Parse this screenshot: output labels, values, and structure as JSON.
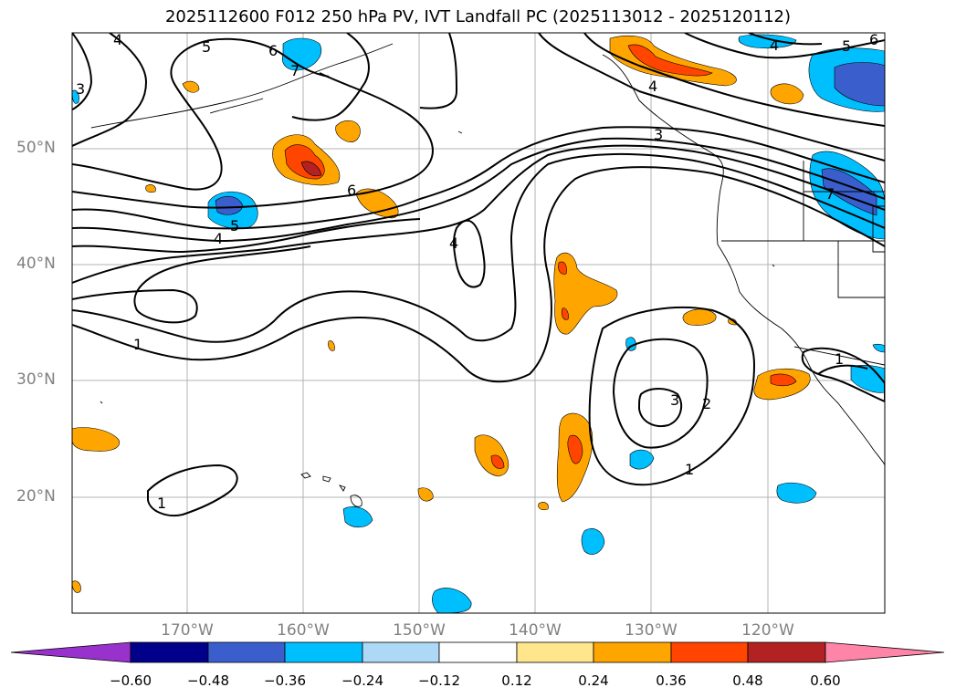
{
  "title": "2025112600 F012 250 hPa PV, IVT Landfall PC (2025113012 - 2025120112)",
  "lat_labels": [
    "50°N",
    "40°N",
    "30°N",
    "20°N"
  ],
  "lon_labels": [
    "170°W",
    "160°W",
    "150°W",
    "140°W",
    "130°W",
    "120°W"
  ],
  "colorbar": {
    "colors": [
      "#9932cc",
      "#00008b",
      "#3a5fcd",
      "#00bfff",
      "#add8f6",
      "#ffffff",
      "#ffe68c",
      "#ffa500",
      "#ff4500",
      "#b22222",
      "#ff85a8"
    ],
    "ticks": [
      "−0.60",
      "−0.48",
      "−0.36",
      "−0.24",
      "−0.12",
      "0.12",
      "0.24",
      "0.36",
      "0.48",
      "0.60"
    ]
  },
  "contour_labels": [
    "4",
    "5",
    "6",
    "7",
    "3",
    "5",
    "4",
    "6",
    "4",
    "3",
    "4",
    "5",
    "6",
    "7",
    "4",
    "1",
    "3",
    "2",
    "1",
    "1",
    "1"
  ]
}
